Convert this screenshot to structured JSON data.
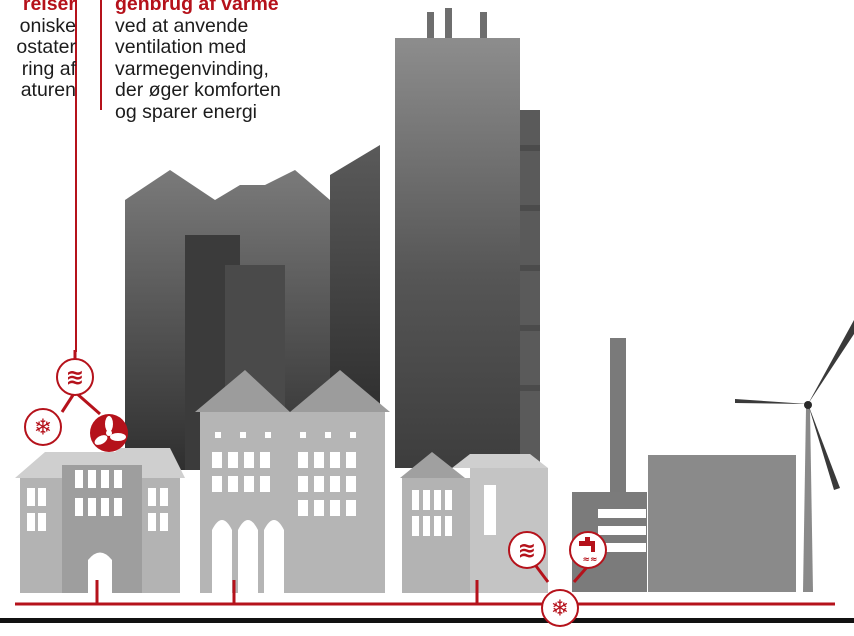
{
  "captions": {
    "left": {
      "heading": "reiser",
      "lines": [
        "oniske",
        "ostater",
        "ring af",
        "aturen"
      ]
    },
    "right": {
      "heading": "genbrug af varme",
      "lines": [
        "ved at anvende",
        "ventilation med",
        "varmegenvinding,",
        "der øger komforten",
        "og sparer energi"
      ]
    }
  },
  "icons": {
    "heat": "heat-waves-icon",
    "cooling": "snowflake-icon",
    "ventilation": "fan-icon",
    "hot_water": "faucet-icon"
  },
  "colors": {
    "accent": "#b5121b",
    "ground": "#111111",
    "building_light": "#b3b3b3",
    "building_dark": "#3a3a3a"
  }
}
